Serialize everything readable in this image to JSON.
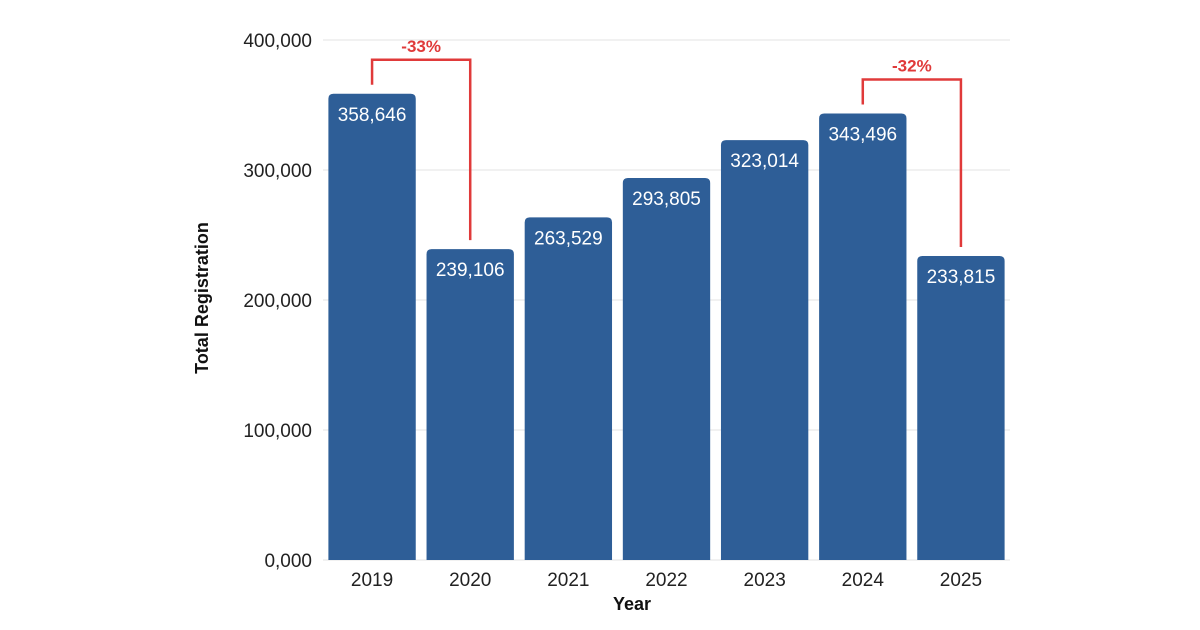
{
  "chart_data": {
    "type": "bar",
    "title": "",
    "xlabel": "Year",
    "ylabel": "Total Registration",
    "categories": [
      "2019",
      "2020",
      "2021",
      "2022",
      "2023",
      "2024",
      "2025"
    ],
    "values": [
      358646,
      239106,
      263529,
      293805,
      323014,
      343496,
      233815
    ],
    "value_labels": [
      "358,646",
      "239,106",
      "263,529",
      "293,805",
      "323,014",
      "343,496",
      "233,815"
    ],
    "ylim": [
      0,
      400000
    ],
    "yticks": [
      0,
      100000,
      200000,
      300000,
      400000
    ],
    "ytick_labels": [
      "0,000",
      "100,000",
      "200,000",
      "300,000",
      "400,000"
    ],
    "grid": true,
    "annotations": [
      {
        "label": "-33%",
        "from": "2019",
        "to": "2020"
      },
      {
        "label": "-32%",
        "from": "2024",
        "to": "2025"
      }
    ]
  },
  "colors": {
    "bar": "#2e5e97",
    "annotation": "#e03a3a",
    "grid": "#e3e3e3"
  }
}
